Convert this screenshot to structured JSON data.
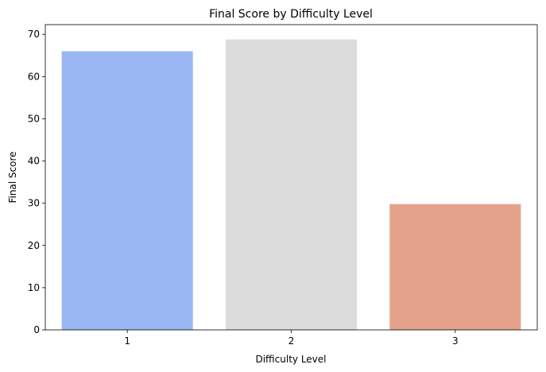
{
  "chart_data": {
    "type": "bar",
    "title": "Final Score by Difficulty Level",
    "xlabel": "Difficulty Level",
    "ylabel": "Final Score",
    "categories": [
      "1",
      "2",
      "3"
    ],
    "values": [
      66,
      68.8,
      29.8
    ],
    "colors": [
      "#9ab6f2",
      "#dcdcdc",
      "#e5a28a"
    ],
    "ylim": [
      0,
      72.3
    ],
    "yticks": [
      0,
      10,
      20,
      30,
      40,
      50,
      60,
      70
    ],
    "grid": false,
    "legend": "none"
  }
}
